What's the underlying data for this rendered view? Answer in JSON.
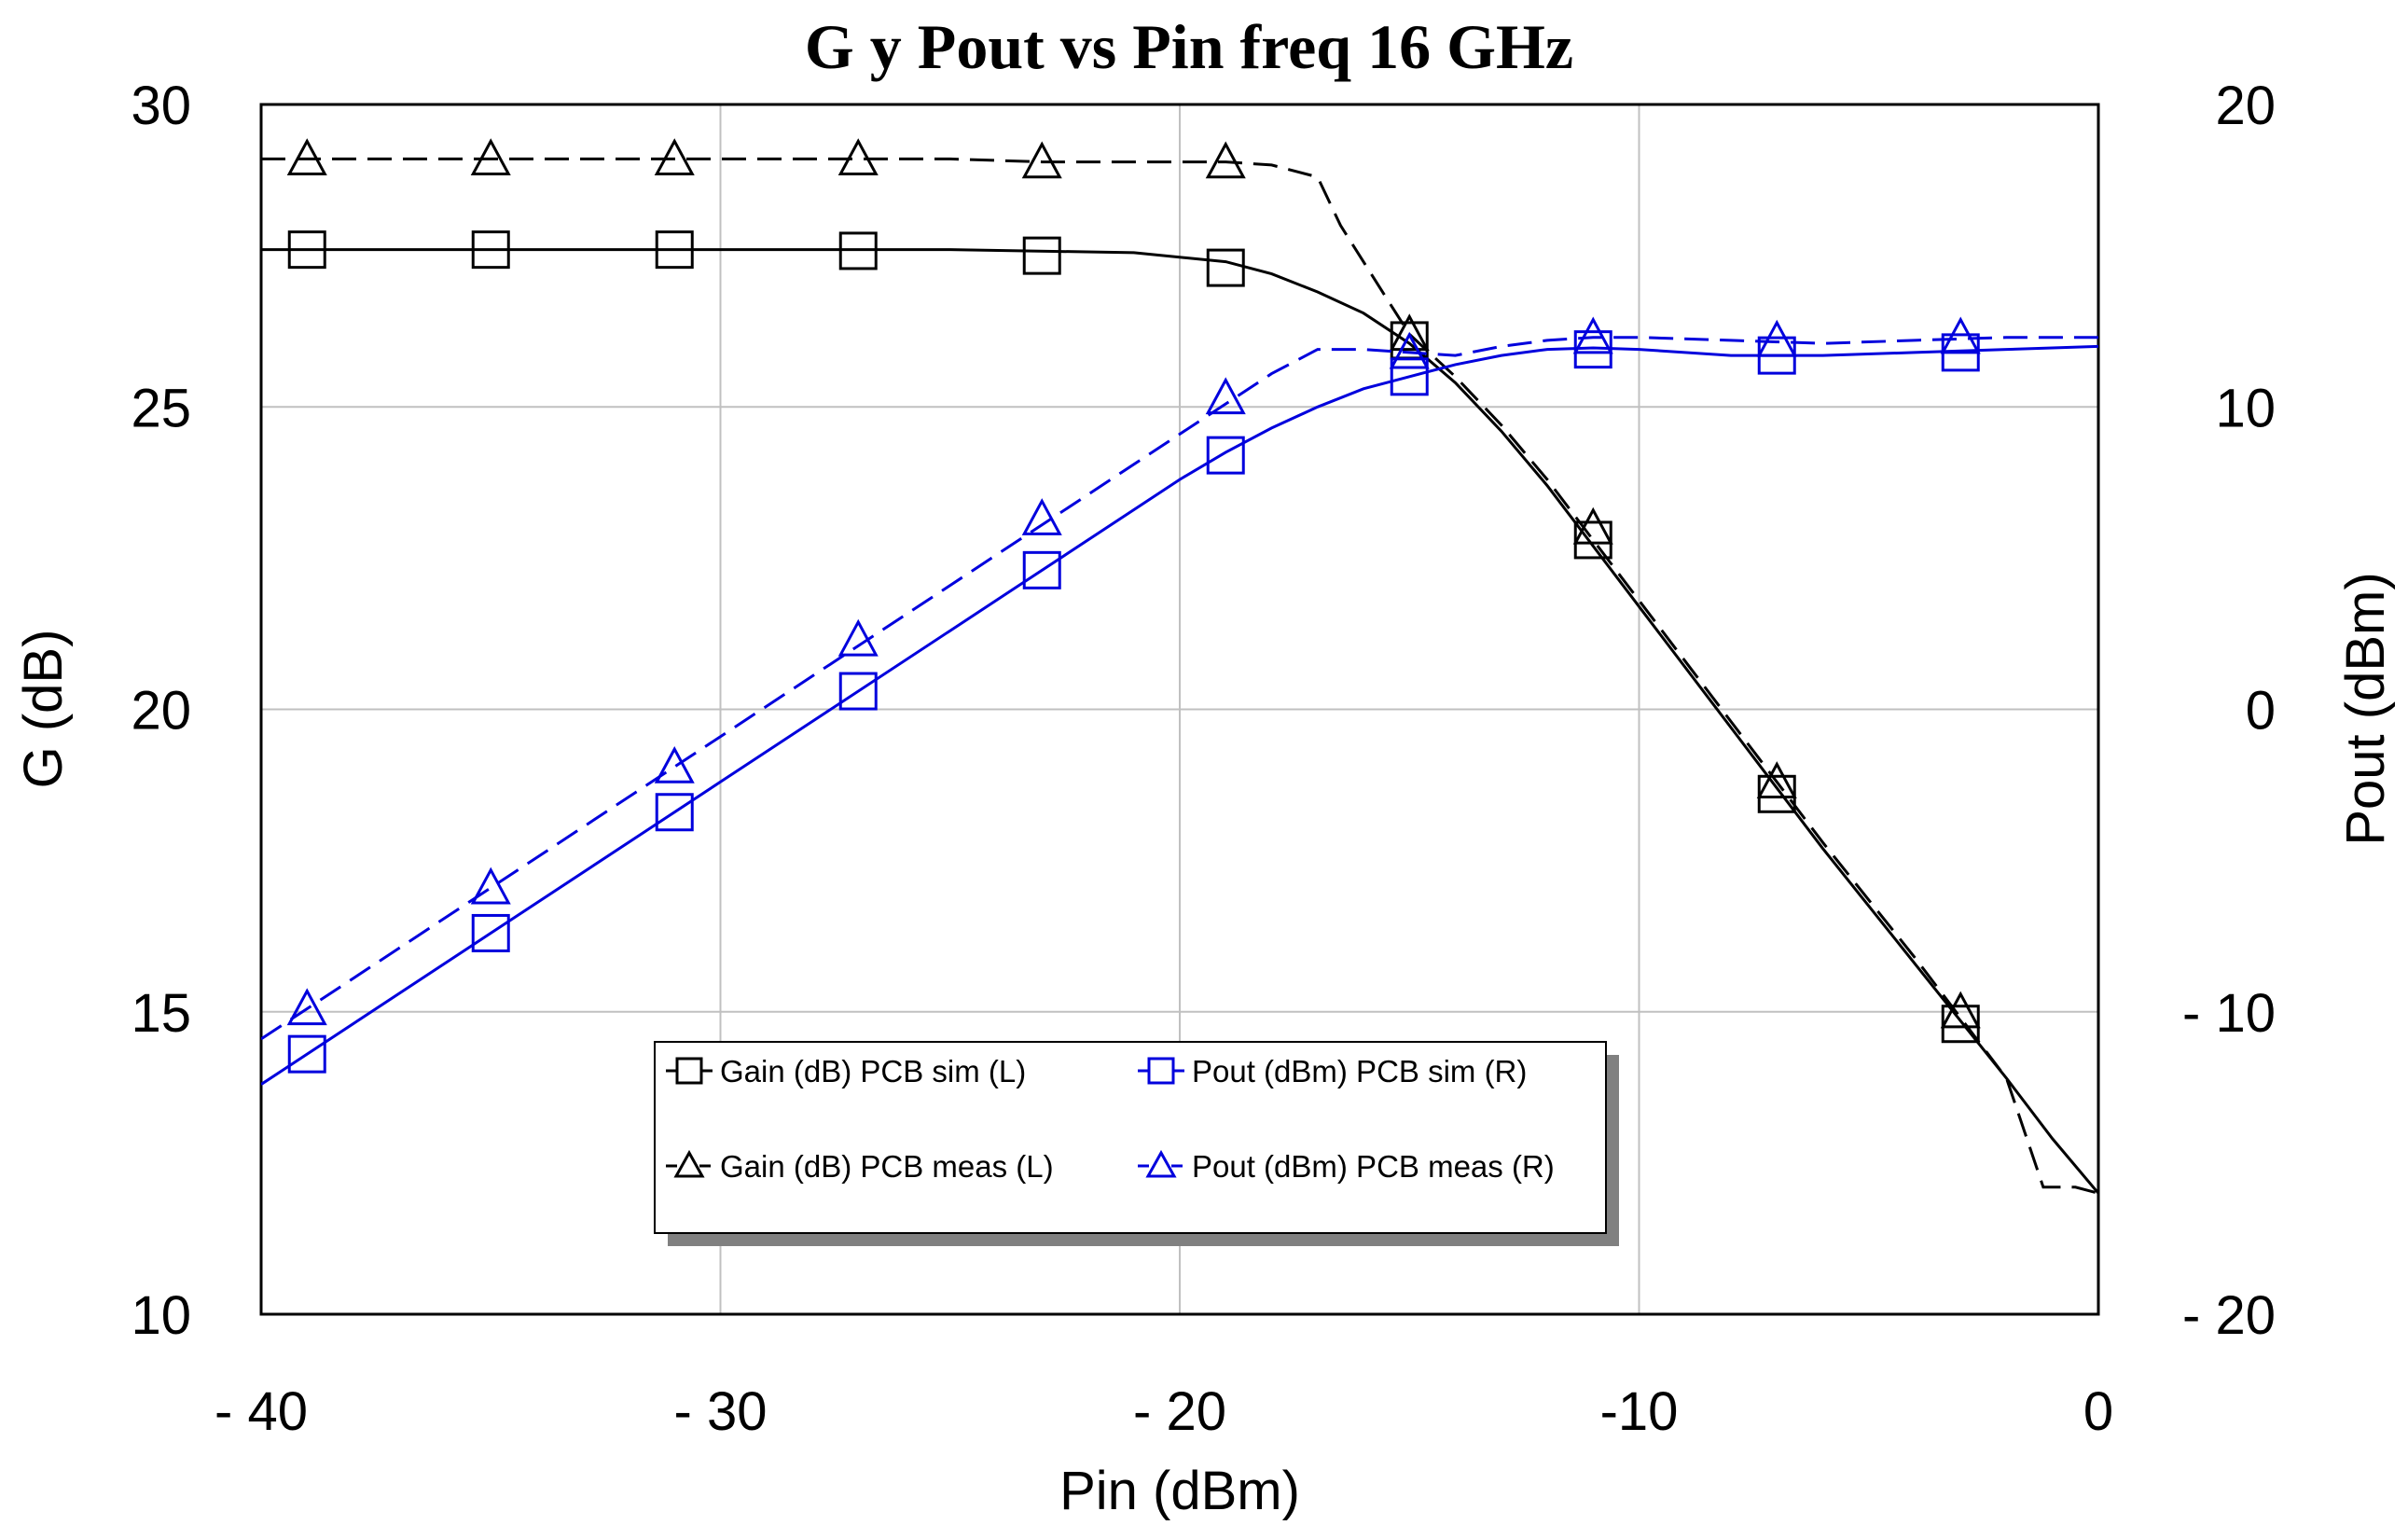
{
  "chart_data": {
    "type": "line",
    "title": "G  y Pout  vs Pin freq 16 GHz",
    "xlabel": "Pin (dBm)",
    "ylabel_left": "G (dB)",
    "ylabel_right": "Pout (dBm)",
    "xlim": [
      -40,
      0
    ],
    "ylim_left": [
      10,
      30
    ],
    "ylim_right": [
      -20,
      20
    ],
    "grid": true,
    "x_ticks": [
      -40,
      -30,
      -20,
      -10,
      0
    ],
    "x_tick_labels": [
      "- 40",
      "- 30",
      "- 20",
      "-10",
      "0"
    ],
    "left_ticks": [
      10,
      15,
      20,
      25,
      30
    ],
    "left_tick_labels": [
      "10",
      "15",
      "20",
      "25",
      "30"
    ],
    "right_ticks": [
      -20,
      -10,
      0,
      10,
      20
    ],
    "right_tick_labels": [
      "- 20",
      "- 10",
      "0",
      "10",
      "20"
    ],
    "colors": {
      "gain": "#000000",
      "pout": "#0000dd",
      "legend_shadow": "#808080",
      "grid": "#c0c0c0"
    },
    "series": [
      {
        "name": "Gain (dB) PCB sim (L)",
        "axis": "left",
        "color": "gain",
        "dash": false,
        "marker": "square",
        "x": [
          -40,
          -35,
          -30,
          -25,
          -21,
          -19,
          -18,
          -17,
          -16,
          -15,
          -14,
          -13,
          -12,
          -10,
          -8,
          -6,
          -4,
          -2,
          -1,
          0
        ],
        "y": [
          27.6,
          27.6,
          27.6,
          27.6,
          27.55,
          27.4,
          27.2,
          26.9,
          26.55,
          26.05,
          25.4,
          24.6,
          23.7,
          21.7,
          19.7,
          17.7,
          15.8,
          13.9,
          12.9,
          12.0
        ],
        "marker_x": [
          -39,
          -35,
          -31,
          -27,
          -23,
          -19,
          -15,
          -11,
          -7,
          -3
        ],
        "marker_y": [
          27.6,
          27.6,
          27.6,
          27.58,
          27.5,
          27.3,
          26.1,
          22.8,
          18.6,
          14.8
        ]
      },
      {
        "name": "Gain (dB) PCB meas (L)",
        "axis": "left",
        "color": "gain",
        "dash": true,
        "marker": "triangle",
        "x": [
          -40,
          -35,
          -30,
          -25,
          -23,
          -19,
          -18,
          -17,
          -16.5,
          -15.5,
          -15,
          -14,
          -13,
          -12,
          -10,
          -8,
          -6,
          -4,
          -2,
          -1.2,
          -0.5,
          0
        ],
        "y": [
          29.1,
          29.1,
          29.1,
          29.1,
          29.05,
          29.05,
          29.0,
          28.8,
          28.0,
          26.8,
          26.2,
          25.5,
          24.7,
          23.8,
          21.8,
          19.8,
          17.8,
          15.9,
          13.9,
          12.1,
          12.1,
          12.0
        ],
        "marker_x": [
          -39,
          -35,
          -31,
          -27,
          -23,
          -19,
          -15,
          -11,
          -7,
          -3
        ],
        "marker_y": [
          29.1,
          29.1,
          29.1,
          29.1,
          29.05,
          29.05,
          26.2,
          23.0,
          18.8,
          15.0
        ]
      },
      {
        "name": "Pout (dBm) PCB sim (R)",
        "axis": "right",
        "color": "pout",
        "dash": false,
        "marker": "square",
        "x": [
          -40,
          -35,
          -30,
          -25,
          -20,
          -19,
          -18,
          -17,
          -16,
          -15,
          -14,
          -13,
          -12,
          -11,
          -10,
          -8,
          -6,
          -4,
          -2,
          0
        ],
        "y": [
          -12.4,
          -7.4,
          -2.4,
          2.6,
          7.6,
          8.5,
          9.3,
          10.0,
          10.6,
          11.0,
          11.4,
          11.7,
          11.9,
          11.95,
          11.9,
          11.7,
          11.7,
          11.8,
          11.9,
          12.0
        ],
        "marker_x": [
          -39,
          -35,
          -31,
          -27,
          -23,
          -19,
          -15,
          -11,
          -7,
          -3
        ],
        "marker_y": [
          -11.4,
          -7.4,
          -3.4,
          0.6,
          4.6,
          8.4,
          11.0,
          11.9,
          11.7,
          11.8
        ]
      },
      {
        "name": "Pout (dBm) PCB meas (R)",
        "axis": "right",
        "color": "pout",
        "dash": true,
        "marker": "triangle",
        "x": [
          -40,
          -35,
          -30,
          -25,
          -20,
          -19,
          -18,
          -17,
          -16,
          -15,
          -14,
          -13,
          -12,
          -11,
          -10,
          -8,
          -6,
          -4,
          -2,
          0
        ],
        "y": [
          -10.9,
          -5.9,
          -0.9,
          4.1,
          9.1,
          10.1,
          11.1,
          11.9,
          11.9,
          11.8,
          11.7,
          12.0,
          12.2,
          12.3,
          12.3,
          12.2,
          12.1,
          12.2,
          12.3,
          12.3
        ],
        "marker_x": [
          -39,
          -35,
          -31,
          -27,
          -23,
          -19,
          -15,
          -11,
          -7,
          -3
        ],
        "marker_y": [
          -9.9,
          -5.9,
          -1.9,
          2.3,
          6.3,
          10.3,
          11.8,
          12.3,
          12.2,
          12.3
        ]
      }
    ],
    "legend": {
      "placement": "bottom-center",
      "entries": [
        "Gain (dB) PCB sim (L)",
        "Pout (dBm) PCB sim (R)",
        "Gain (dB) PCB meas (L)",
        "Pout (dBm) PCB meas (R)"
      ]
    }
  }
}
